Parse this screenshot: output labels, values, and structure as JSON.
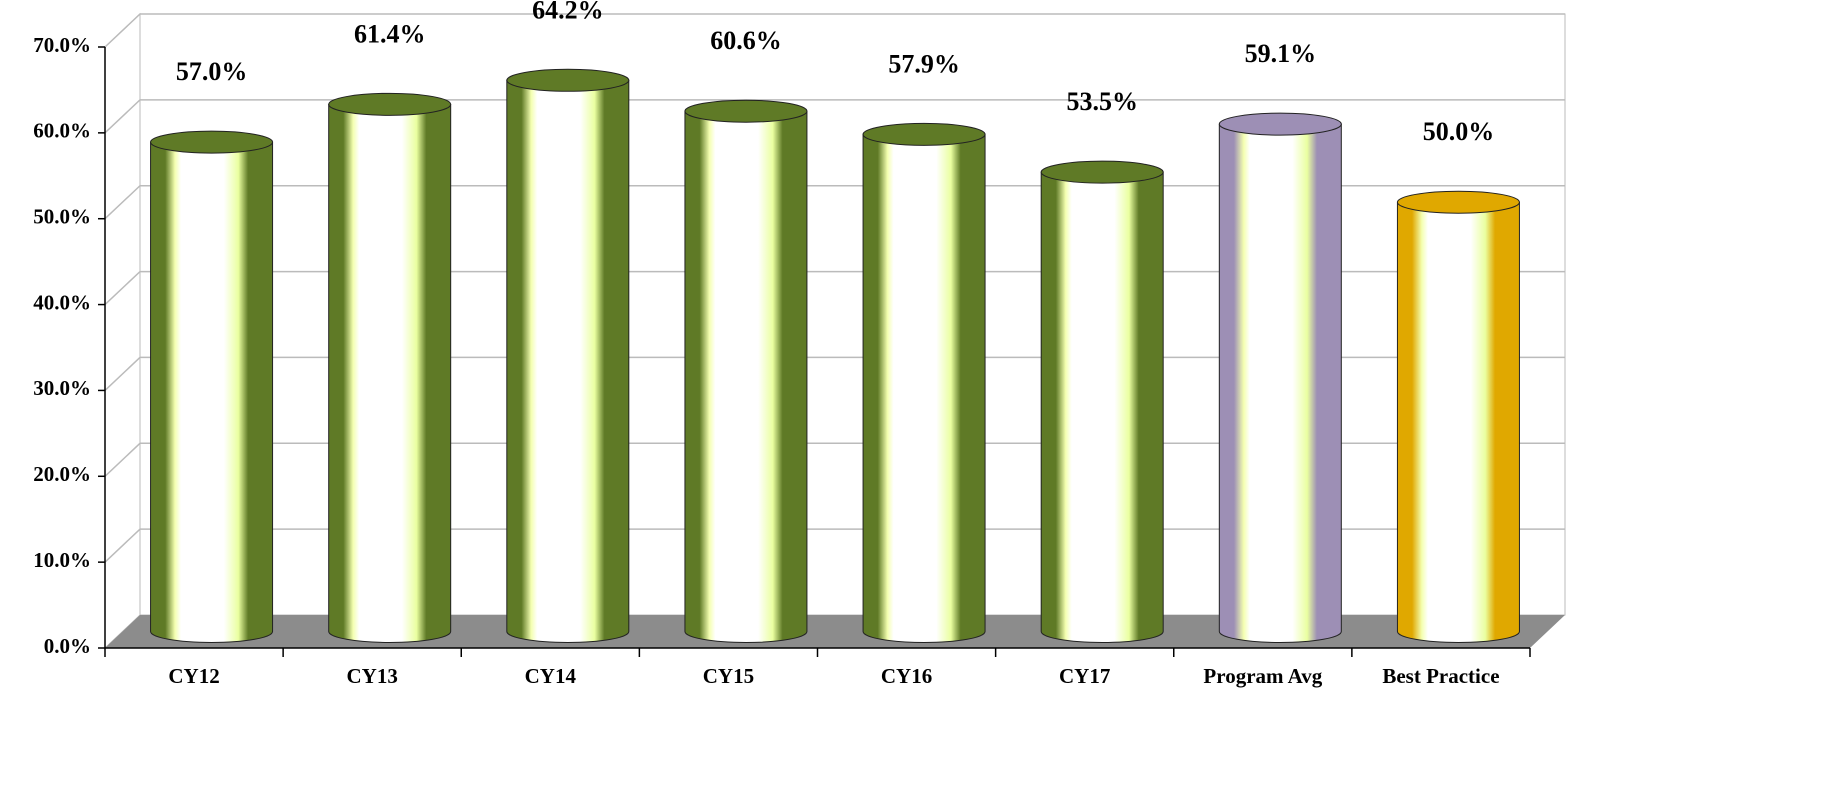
{
  "chart_data": {
    "type": "bar",
    "categories": [
      "CY12",
      "CY13",
      "CY14",
      "CY15",
      "CY16",
      "CY17",
      "Program Avg",
      "Best Practice"
    ],
    "values": [
      57.0,
      61.4,
      64.2,
      60.6,
      57.9,
      53.5,
      59.1,
      50.0
    ],
    "value_labels": [
      "57.0%",
      "61.4%",
      "64.2%",
      "60.6%",
      "57.9%",
      "53.5%",
      "59.1%",
      "50.0%"
    ],
    "colors": [
      "#5f7a26",
      "#5f7a26",
      "#5f7a26",
      "#5f7a26",
      "#5f7a26",
      "#5f7a26",
      "#9d8fb5",
      "#e0a800"
    ],
    "ylim": [
      0,
      70
    ],
    "yticks": [
      {
        "value": 0,
        "label": "0.0%"
      },
      {
        "value": 10,
        "label": "10.0%"
      },
      {
        "value": 20,
        "label": "20.0%"
      },
      {
        "value": 30,
        "label": "30.0%"
      },
      {
        "value": 40,
        "label": "40.0%"
      },
      {
        "value": 50,
        "label": "50.0%"
      },
      {
        "value": 60,
        "label": "60.0%"
      },
      {
        "value": 70,
        "label": "70.0%"
      }
    ],
    "grid": true
  }
}
